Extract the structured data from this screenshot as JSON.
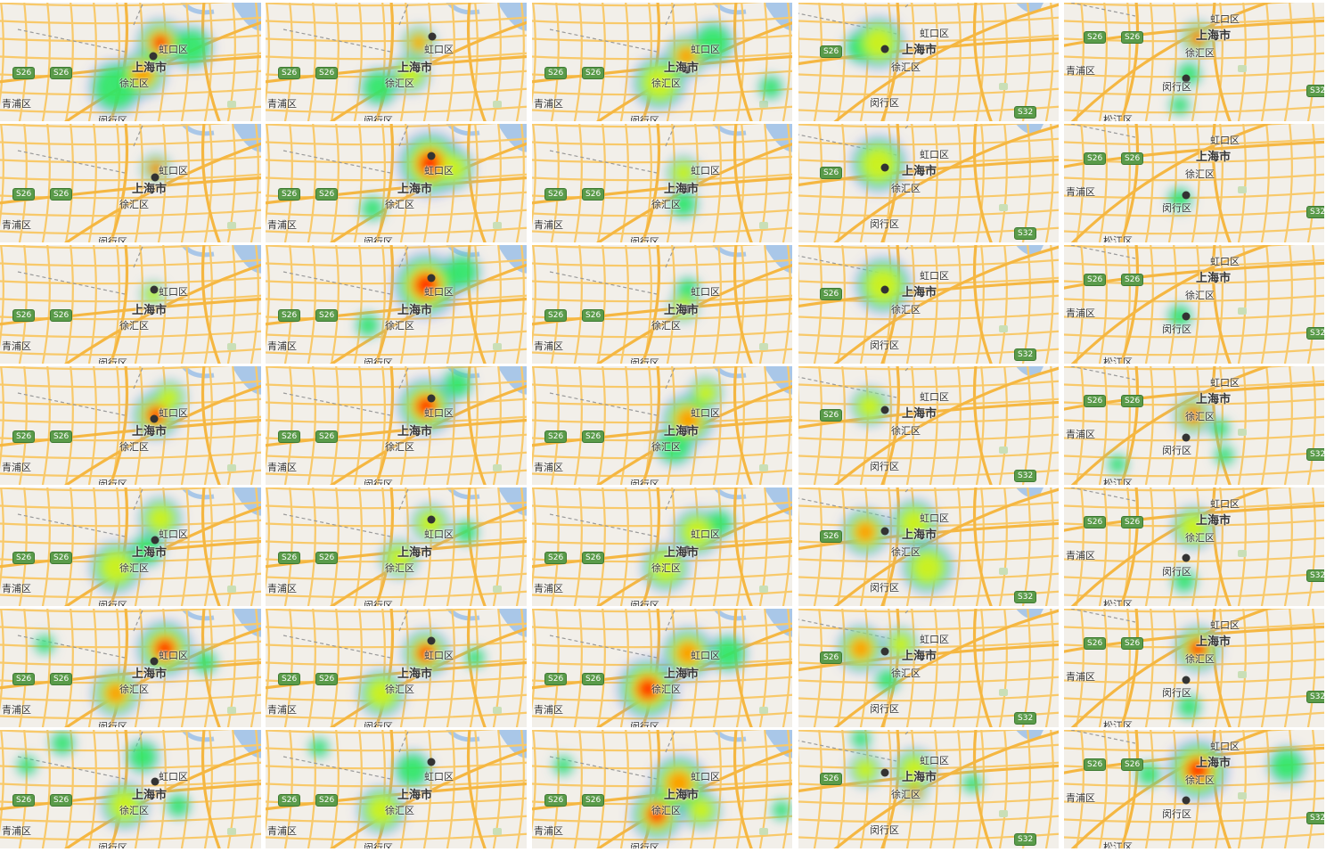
{
  "map": {
    "city": "上海市",
    "districts": [
      "虹口区",
      "徐汇区",
      "青浦区",
      "闵行区",
      "松江区"
    ],
    "road_shields": [
      "S26",
      "S32"
    ],
    "colors": {
      "land": "#f2efe9",
      "water": "#a9c7e8",
      "road": "#f8c96a",
      "road_major": "#f5b742",
      "shield": "#5a9b4a",
      "heat_low": "#6f6cff",
      "heat_mid": "#29f05a",
      "heat_high": "#ff2200",
      "marker": "#333333"
    }
  },
  "grid": {
    "rows": 7,
    "columns": 5
  }
}
